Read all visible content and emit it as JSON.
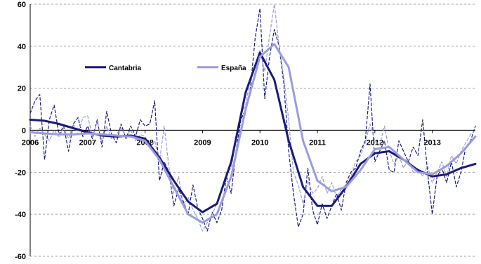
{
  "chart_data": {
    "type": "line",
    "title": "",
    "xlabel": "",
    "ylabel": "",
    "ylim": [
      -60,
      60
    ],
    "y_ticks": [
      60,
      40,
      20,
      0,
      -20,
      -40,
      -60
    ],
    "y_tick_labels": [
      "60",
      "40",
      "20",
      "0",
      "-20",
      "-40",
      "-60"
    ],
    "x_range": [
      2006.0,
      2013.75
    ],
    "x_ticks": [
      {
        "label": "2006",
        "x": 2006.0
      },
      {
        "label": "2007",
        "x": 2007.0
      },
      {
        "label": "2008",
        "x": 2008.0
      },
      {
        "label": "2009",
        "x": 2009.0
      },
      {
        "label": "2010",
        "x": 2010.0
      },
      {
        "label": "2011",
        "x": 2011.0
      },
      {
        "label": "2012",
        "x": 2012.0
      },
      {
        "label": "2013",
        "x": 2013.0
      }
    ],
    "grid": "horizontal dashed",
    "legend_position": "top-left, inside",
    "series": [
      {
        "name": "Cantabria",
        "kind": "trend",
        "color": "#1a1a7a",
        "width": 3,
        "dash": "",
        "legend": true,
        "points": [
          [
            2006.0,
            5
          ],
          [
            2006.25,
            4.5
          ],
          [
            2006.5,
            3
          ],
          [
            2006.75,
            1
          ],
          [
            2007.0,
            -1
          ],
          [
            2007.25,
            -2.5
          ],
          [
            2007.5,
            -3
          ],
          [
            2007.75,
            -2.5
          ],
          [
            2008.0,
            -4
          ],
          [
            2008.25,
            -13
          ],
          [
            2008.5,
            -24
          ],
          [
            2008.75,
            -34
          ],
          [
            2009.0,
            -39
          ],
          [
            2009.25,
            -35
          ],
          [
            2009.5,
            -15
          ],
          [
            2009.75,
            18
          ],
          [
            2010.0,
            37
          ],
          [
            2010.25,
            24
          ],
          [
            2010.5,
            -5
          ],
          [
            2010.75,
            -27
          ],
          [
            2011.0,
            -36
          ],
          [
            2011.25,
            -36
          ],
          [
            2011.5,
            -27
          ],
          [
            2011.75,
            -16
          ],
          [
            2012.0,
            -11
          ],
          [
            2012.25,
            -10
          ],
          [
            2012.5,
            -14
          ],
          [
            2012.75,
            -19
          ],
          [
            2013.0,
            -22
          ],
          [
            2013.25,
            -21
          ],
          [
            2013.5,
            -18
          ],
          [
            2013.75,
            -16
          ]
        ]
      },
      {
        "name": "España",
        "kind": "trend",
        "color": "#9b9bde",
        "width": 3,
        "dash": "",
        "legend": true,
        "points": [
          [
            2006.0,
            -1
          ],
          [
            2006.25,
            -1.5
          ],
          [
            2006.5,
            -2
          ],
          [
            2006.75,
            -2
          ],
          [
            2007.0,
            -1.5
          ],
          [
            2007.25,
            -2
          ],
          [
            2007.5,
            -2.5
          ],
          [
            2007.75,
            -3
          ],
          [
            2008.0,
            -5
          ],
          [
            2008.25,
            -14
          ],
          [
            2008.5,
            -27
          ],
          [
            2008.75,
            -40
          ],
          [
            2009.0,
            -44
          ],
          [
            2009.25,
            -40
          ],
          [
            2009.5,
            -22
          ],
          [
            2009.75,
            10
          ],
          [
            2010.0,
            35
          ],
          [
            2010.25,
            41
          ],
          [
            2010.5,
            30
          ],
          [
            2010.75,
            -5
          ],
          [
            2011.0,
            -24
          ],
          [
            2011.25,
            -29
          ],
          [
            2011.5,
            -27
          ],
          [
            2011.75,
            -19
          ],
          [
            2012.0,
            -9
          ],
          [
            2012.25,
            -8
          ],
          [
            2012.5,
            -14
          ],
          [
            2012.75,
            -20
          ],
          [
            2013.0,
            -21
          ],
          [
            2013.25,
            -17
          ],
          [
            2013.5,
            -11
          ],
          [
            2013.75,
            -3
          ]
        ]
      },
      {
        "name": "Cantabria (monthly)",
        "kind": "monthly",
        "color": "#1a1a7a",
        "width": 1.2,
        "dash": "4,3",
        "legend": false,
        "points": [
          [
            2006.0,
            8
          ],
          [
            2006.083,
            14
          ],
          [
            2006.167,
            17
          ],
          [
            2006.25,
            -14
          ],
          [
            2006.333,
            5
          ],
          [
            2006.417,
            12
          ],
          [
            2006.5,
            -2
          ],
          [
            2006.583,
            2
          ],
          [
            2006.667,
            -10
          ],
          [
            2006.75,
            3
          ],
          [
            2006.833,
            6
          ],
          [
            2006.917,
            -3
          ],
          [
            2007.0,
            2
          ],
          [
            2007.083,
            -4
          ],
          [
            2007.167,
            5
          ],
          [
            2007.25,
            -8
          ],
          [
            2007.333,
            9
          ],
          [
            2007.417,
            -2
          ],
          [
            2007.5,
            -6
          ],
          [
            2007.583,
            3
          ],
          [
            2007.667,
            -4
          ],
          [
            2007.75,
            2
          ],
          [
            2007.833,
            -3
          ],
          [
            2007.917,
            5
          ],
          [
            2008.0,
            2
          ],
          [
            2008.083,
            3
          ],
          [
            2008.167,
            14
          ],
          [
            2008.25,
            -24
          ],
          [
            2008.333,
            -15
          ],
          [
            2008.417,
            -20
          ],
          [
            2008.5,
            -36
          ],
          [
            2008.583,
            -28
          ],
          [
            2008.667,
            -34
          ],
          [
            2008.75,
            -40
          ],
          [
            2008.833,
            -26
          ],
          [
            2008.917,
            -37
          ],
          [
            2009.0,
            -42
          ],
          [
            2009.083,
            -48
          ],
          [
            2009.167,
            -39
          ],
          [
            2009.25,
            -44
          ],
          [
            2009.333,
            -38
          ],
          [
            2009.417,
            -22
          ],
          [
            2009.5,
            -30
          ],
          [
            2009.583,
            -10
          ],
          [
            2009.667,
            5
          ],
          [
            2009.75,
            10
          ],
          [
            2009.833,
            20
          ],
          [
            2009.917,
            44
          ],
          [
            2010.0,
            58
          ],
          [
            2010.083,
            15
          ],
          [
            2010.167,
            35
          ],
          [
            2010.25,
            48
          ],
          [
            2010.333,
            40
          ],
          [
            2010.417,
            22
          ],
          [
            2010.5,
            -10
          ],
          [
            2010.583,
            -30
          ],
          [
            2010.667,
            -46
          ],
          [
            2010.75,
            -40
          ],
          [
            2010.833,
            -18
          ],
          [
            2010.917,
            -38
          ],
          [
            2011.0,
            -45
          ],
          [
            2011.083,
            -35
          ],
          [
            2011.167,
            -42
          ],
          [
            2011.25,
            -36
          ],
          [
            2011.333,
            -30
          ],
          [
            2011.417,
            -38
          ],
          [
            2011.5,
            -25
          ],
          [
            2011.583,
            -20
          ],
          [
            2011.667,
            -18
          ],
          [
            2011.75,
            -10
          ],
          [
            2011.833,
            -5
          ],
          [
            2011.917,
            22
          ],
          [
            2012.0,
            -15
          ],
          [
            2012.083,
            -10
          ],
          [
            2012.167,
            -5
          ],
          [
            2012.25,
            -19
          ],
          [
            2012.333,
            -20
          ],
          [
            2012.417,
            -5
          ],
          [
            2012.5,
            -10
          ],
          [
            2012.583,
            -15
          ],
          [
            2012.667,
            -8
          ],
          [
            2012.75,
            -12
          ],
          [
            2012.833,
            5
          ],
          [
            2012.917,
            -20
          ],
          [
            2013.0,
            -40
          ],
          [
            2013.083,
            -22
          ],
          [
            2013.167,
            -18
          ],
          [
            2013.25,
            -25
          ],
          [
            2013.333,
            -15
          ],
          [
            2013.417,
            -27
          ],
          [
            2013.5,
            -20
          ],
          [
            2013.583,
            -8
          ],
          [
            2013.667,
            -5
          ],
          [
            2013.75,
            2
          ]
        ]
      },
      {
        "name": "España (monthly)",
        "kind": "monthly",
        "color": "#9b9bde",
        "width": 1.2,
        "dash": "4,3",
        "legend": false,
        "points": [
          [
            2006.0,
            2
          ],
          [
            2006.083,
            -3
          ],
          [
            2006.167,
            1
          ],
          [
            2006.25,
            -2
          ],
          [
            2006.333,
            -5
          ],
          [
            2006.417,
            0
          ],
          [
            2006.5,
            -3
          ],
          [
            2006.583,
            1
          ],
          [
            2006.667,
            -4
          ],
          [
            2006.75,
            3
          ],
          [
            2006.833,
            -2
          ],
          [
            2006.917,
            6
          ],
          [
            2007.0,
            7
          ],
          [
            2007.083,
            -3
          ],
          [
            2007.167,
            4
          ],
          [
            2007.25,
            -5
          ],
          [
            2007.333,
            2
          ],
          [
            2007.417,
            -4
          ],
          [
            2007.5,
            -2
          ],
          [
            2007.583,
            1
          ],
          [
            2007.667,
            -3
          ],
          [
            2007.75,
            0
          ],
          [
            2007.833,
            -5
          ],
          [
            2007.917,
            -2
          ],
          [
            2008.0,
            -3
          ],
          [
            2008.083,
            -8
          ],
          [
            2008.167,
            -5
          ],
          [
            2008.25,
            -15
          ],
          [
            2008.333,
            2
          ],
          [
            2008.417,
            -18
          ],
          [
            2008.5,
            -30
          ],
          [
            2008.583,
            -22
          ],
          [
            2008.667,
            -36
          ],
          [
            2008.75,
            -32
          ],
          [
            2008.833,
            -38
          ],
          [
            2008.917,
            -42
          ],
          [
            2009.0,
            -48
          ],
          [
            2009.083,
            -44
          ],
          [
            2009.167,
            -40
          ],
          [
            2009.25,
            -35
          ],
          [
            2009.333,
            -28
          ],
          [
            2009.417,
            -20
          ],
          [
            2009.5,
            -18
          ],
          [
            2009.583,
            -5
          ],
          [
            2009.667,
            8
          ],
          [
            2009.75,
            12
          ],
          [
            2009.833,
            25
          ],
          [
            2009.917,
            30
          ],
          [
            2010.0,
            38
          ],
          [
            2010.083,
            28
          ],
          [
            2010.167,
            45
          ],
          [
            2010.25,
            60
          ],
          [
            2010.333,
            40
          ],
          [
            2010.417,
            25
          ],
          [
            2010.5,
            5
          ],
          [
            2010.583,
            -20
          ],
          [
            2010.667,
            -26
          ],
          [
            2010.75,
            -35
          ],
          [
            2010.833,
            -24
          ],
          [
            2010.917,
            -30
          ],
          [
            2011.0,
            -28
          ],
          [
            2011.083,
            -22
          ],
          [
            2011.167,
            -30
          ],
          [
            2011.25,
            -25
          ],
          [
            2011.333,
            -32
          ],
          [
            2011.417,
            -28
          ],
          [
            2011.5,
            -26
          ],
          [
            2011.583,
            -22
          ],
          [
            2011.667,
            -15
          ],
          [
            2011.75,
            -12
          ],
          [
            2011.833,
            -6
          ],
          [
            2011.917,
            3
          ],
          [
            2012.0,
            -5
          ],
          [
            2012.083,
            -7
          ],
          [
            2012.167,
            2
          ],
          [
            2012.25,
            -10
          ],
          [
            2012.333,
            -16
          ],
          [
            2012.417,
            -12
          ],
          [
            2012.5,
            -18
          ],
          [
            2012.583,
            -14
          ],
          [
            2012.667,
            -20
          ],
          [
            2012.75,
            -18
          ],
          [
            2012.833,
            -22
          ],
          [
            2012.917,
            -17
          ],
          [
            2013.0,
            -25
          ],
          [
            2013.083,
            -20
          ],
          [
            2013.167,
            -15
          ],
          [
            2013.25,
            -22
          ],
          [
            2013.333,
            -12
          ],
          [
            2013.417,
            -16
          ],
          [
            2013.5,
            -10
          ],
          [
            2013.583,
            -6
          ],
          [
            2013.667,
            -2
          ],
          [
            2013.75,
            0
          ]
        ]
      }
    ]
  }
}
